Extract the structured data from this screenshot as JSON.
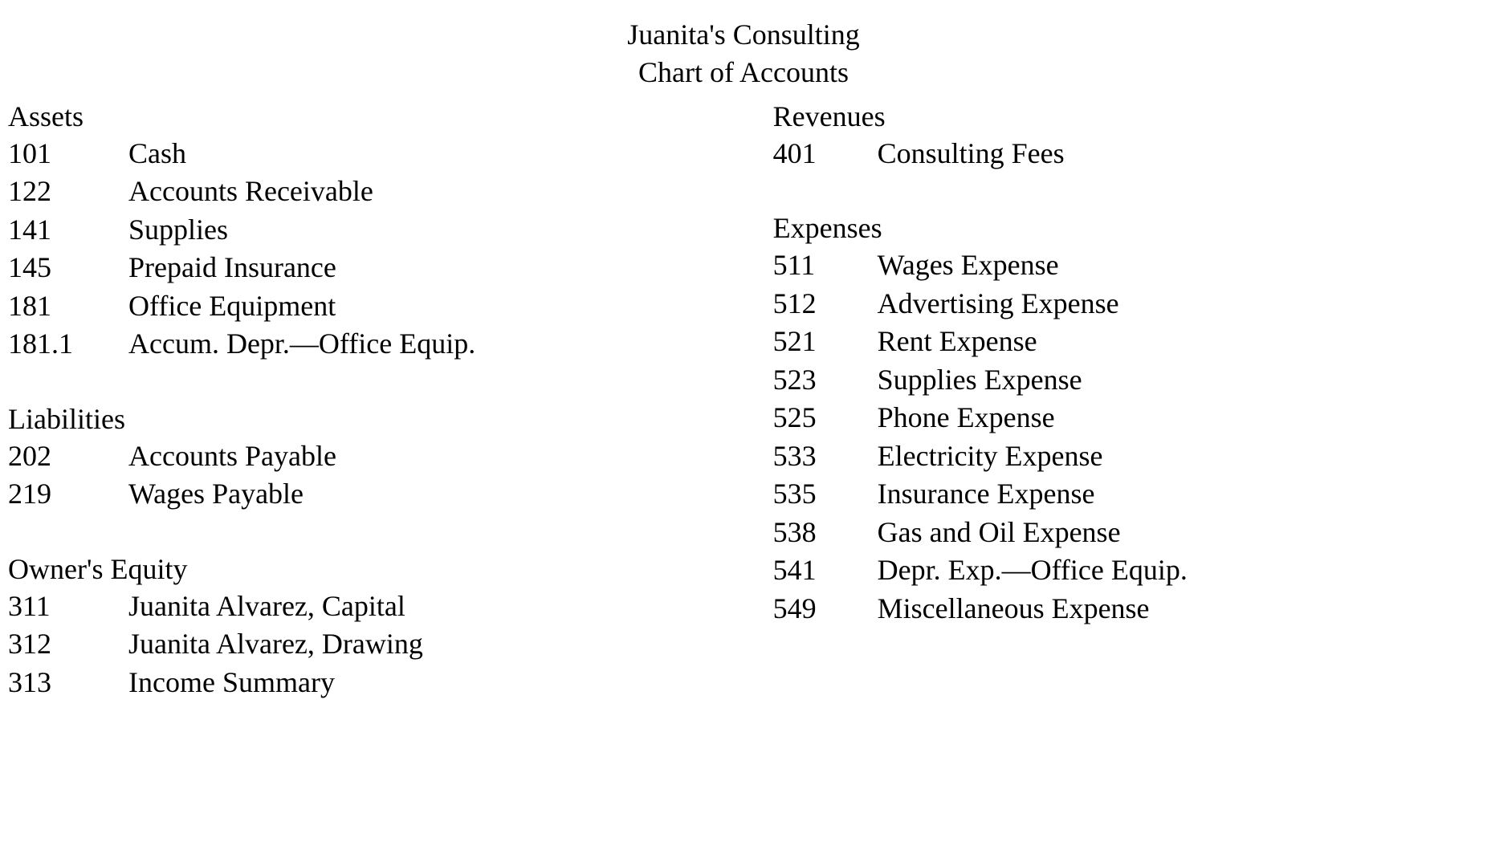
{
  "header": {
    "line1": "Juanita's Consulting",
    "line2": "Chart of Accounts"
  },
  "left_sections": [
    {
      "title": "Assets",
      "accounts": [
        {
          "num": "101",
          "name": "Cash"
        },
        {
          "num": "122",
          "name": "Accounts Receivable"
        },
        {
          "num": "141",
          "name": "Supplies"
        },
        {
          "num": "145",
          "name": "Prepaid Insurance"
        },
        {
          "num": "181",
          "name": "Office Equipment"
        },
        {
          "num": "181.1",
          "name": "Accum. Depr.—Office Equip."
        }
      ]
    },
    {
      "title": "Liabilities",
      "accounts": [
        {
          "num": "202",
          "name": "Accounts Payable"
        },
        {
          "num": "219",
          "name": "Wages Payable"
        }
      ]
    },
    {
      "title": "Owner's Equity",
      "accounts": [
        {
          "num": "311",
          "name": "Juanita Alvarez, Capital"
        },
        {
          "num": "312",
          "name": "Juanita Alvarez, Drawing"
        },
        {
          "num": "313",
          "name": "Income Summary"
        }
      ]
    }
  ],
  "right_sections": [
    {
      "title": "Revenues",
      "accounts": [
        {
          "num": "401",
          "name": "Consulting Fees"
        }
      ]
    },
    {
      "title": "Expenses",
      "accounts": [
        {
          "num": "511",
          "name": "Wages Expense"
        },
        {
          "num": "512",
          "name": "Advertising Expense"
        },
        {
          "num": "521",
          "name": "Rent Expense"
        },
        {
          "num": "523",
          "name": "Supplies Expense"
        },
        {
          "num": "525",
          "name": "Phone Expense"
        },
        {
          "num": "533",
          "name": "Electricity Expense"
        },
        {
          "num": "535",
          "name": "Insurance Expense"
        },
        {
          "num": "538",
          "name": "Gas and Oil Expense"
        },
        {
          "num": "541",
          "name": "Depr. Exp.—Office Equip."
        },
        {
          "num": "549",
          "name": "Miscellaneous Expense"
        }
      ]
    }
  ]
}
